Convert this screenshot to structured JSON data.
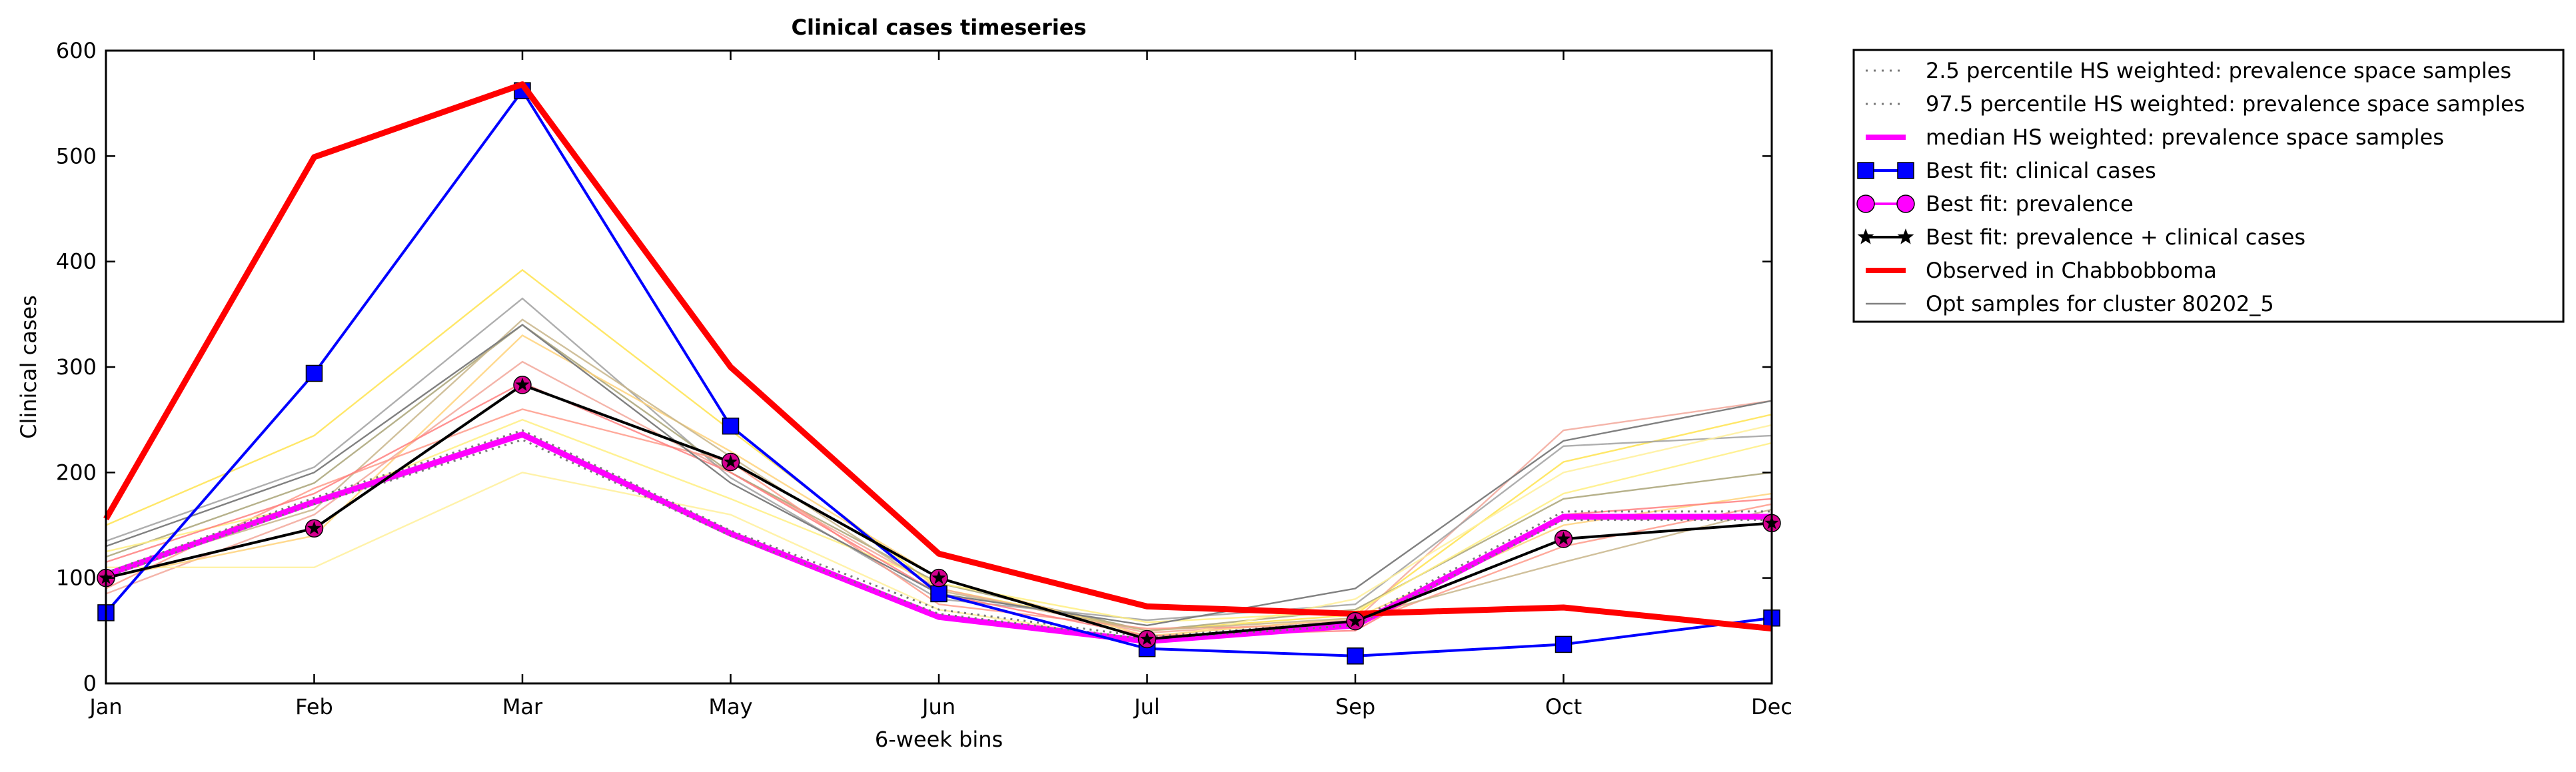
{
  "chart_data": {
    "type": "line",
    "title": "Clinical cases timeseries",
    "xlabel": "6-week bins",
    "ylabel": "Clinical cases",
    "categories": [
      "Jan",
      "Feb",
      "Mar",
      "May",
      "Jun",
      "Jul",
      "Sep",
      "Oct",
      "Dec"
    ],
    "ylim": [
      0,
      600
    ],
    "yticks": [
      0,
      100,
      200,
      300,
      400,
      500,
      600
    ],
    "grid": false,
    "legend_position": "outside-right",
    "series": [
      {
        "name": "2.5 percentile HS weighted: prevalence space samples",
        "color": "#777777",
        "style": "dotted",
        "values": [
          101,
          170,
          231,
          140,
          66,
          42,
          55,
          155,
          155
        ]
      },
      {
        "name": "97.5 percentile HS weighted: prevalence space samples",
        "color": "#777777",
        "style": "dotted",
        "values": [
          105,
          176,
          240,
          145,
          70,
          44,
          59,
          163,
          163
        ]
      },
      {
        "name": "median HS weighted: prevalence space samples",
        "color": "#ff00ff",
        "style": "solid-thick",
        "values": [
          103,
          172,
          236,
          142,
          63,
          40,
          55,
          158,
          158
        ]
      },
      {
        "name": "Best fit: clinical cases",
        "color": "#0000ff",
        "marker": "square",
        "values": [
          67,
          294,
          562,
          244,
          85,
          33,
          26,
          37,
          62
        ]
      },
      {
        "name": "Best fit: prevalence",
        "color": "#ff00ff",
        "marker": "circle",
        "values": [
          100,
          147,
          283,
          210,
          100,
          42,
          59,
          137,
          152
        ]
      },
      {
        "name": "Best fit: prevalence + clinical cases",
        "color": "#000000",
        "marker": "star",
        "values": [
          100,
          147,
          283,
          210,
          100,
          42,
          59,
          137,
          152
        ]
      },
      {
        "name": "Observed in Chabbobboma",
        "color": "#ff0000",
        "style": "solid-thick",
        "values": [
          156,
          499,
          568,
          300,
          123,
          73,
          66,
          72,
          52
        ]
      },
      {
        "name": "Opt samples for cluster 80202_5",
        "color": "#808080",
        "style": "thin",
        "values": [
          130,
          200,
          340,
          190,
          85,
          55,
          90,
          230,
          268
        ]
      }
    ],
    "opt_samples": [
      {
        "color": "#ffe34d",
        "values": [
          150,
          235,
          392,
          240,
          90,
          50,
          65,
          210,
          255
        ]
      },
      {
        "color": "#f2a79a",
        "values": [
          85,
          160,
          305,
          200,
          90,
          48,
          60,
          240,
          268
        ]
      },
      {
        "color": "#a0a0a0",
        "values": [
          135,
          205,
          365,
          195,
          80,
          60,
          75,
          225,
          235
        ]
      },
      {
        "color": "#a9a377",
        "values": [
          120,
          190,
          340,
          200,
          95,
          50,
          70,
          175,
          200
        ]
      },
      {
        "color": "#fff09a",
        "values": [
          110,
          110,
          200,
          160,
          70,
          40,
          80,
          200,
          245
        ]
      },
      {
        "color": "#ffd27a",
        "values": [
          100,
          140,
          330,
          220,
          100,
          45,
          62,
          150,
          180
        ]
      },
      {
        "color": "#ff9a8a",
        "values": [
          90,
          185,
          260,
          210,
          75,
          52,
          55,
          130,
          170
        ]
      },
      {
        "color": "#c8b58a",
        "values": [
          105,
          165,
          345,
          215,
          88,
          50,
          62,
          115,
          165
        ]
      },
      {
        "color": "#ffee80",
        "values": [
          125,
          170,
          250,
          175,
          95,
          58,
          68,
          180,
          228
        ]
      },
      {
        "color": "#ff7f7f",
        "values": [
          115,
          180,
          285,
          200,
          85,
          45,
          50,
          160,
          175
        ]
      }
    ]
  }
}
